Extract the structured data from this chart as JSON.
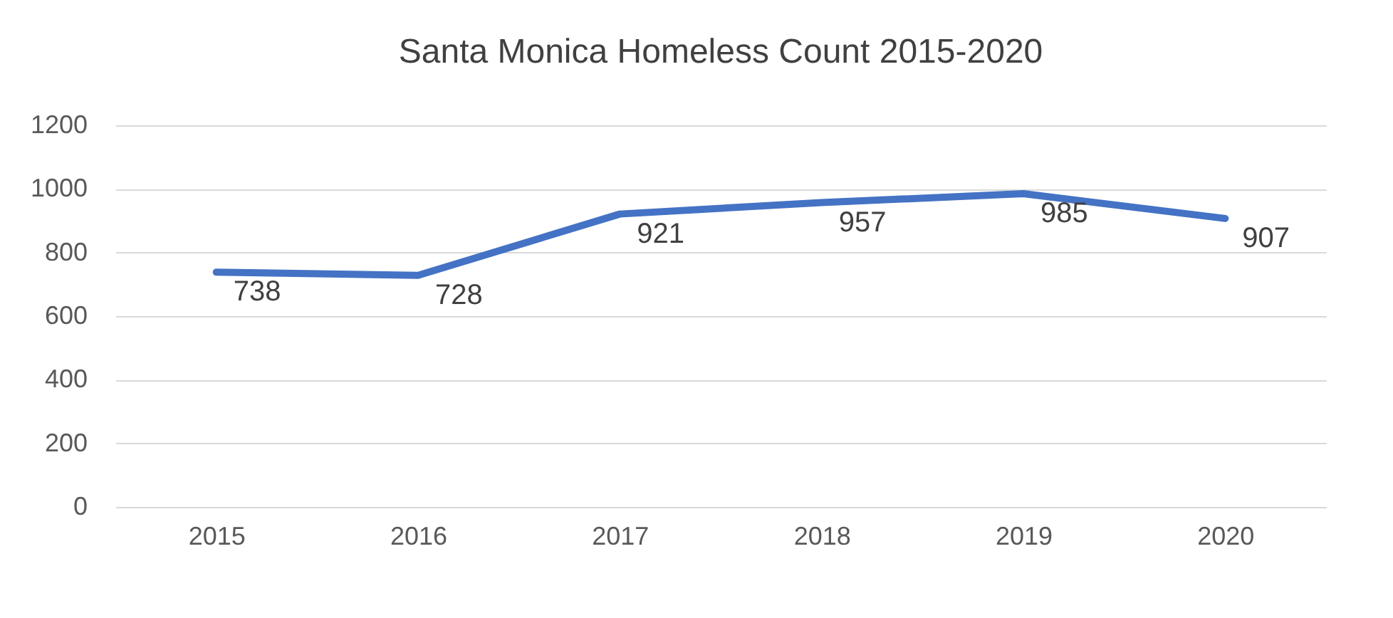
{
  "chart_data": {
    "type": "line",
    "title": "Santa Monica Homeless Count 2015-2020",
    "categories": [
      "2015",
      "2016",
      "2017",
      "2018",
      "2019",
      "2020"
    ],
    "series": [
      {
        "color": "#4472c4",
        "values": [
          738,
          728,
          921,
          957,
          985,
          907
        ]
      }
    ],
    "ylim": [
      0,
      1200
    ],
    "yticks": [
      0,
      200,
      400,
      600,
      800,
      1000,
      1200
    ],
    "grid": "y",
    "data_labels": true,
    "marker": "none",
    "line_style": "solid"
  }
}
